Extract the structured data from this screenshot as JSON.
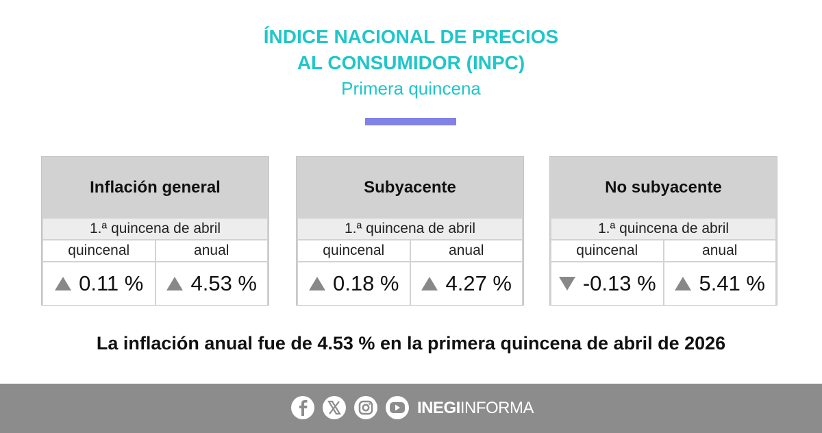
{
  "header": {
    "title_line1": "ÍNDICE NACIONAL DE PRECIOS",
    "title_line2": "AL CONSUMIDOR (INPC)",
    "subtitle": "Primera quincena"
  },
  "cards": [
    {
      "title": "Inflación general",
      "period": "1.ª quincena de abril",
      "col_labels": [
        "quincenal",
        "anual"
      ],
      "values": [
        "0.11 %",
        "4.53 %"
      ]
    },
    {
      "title": "Subyacente",
      "period": "1.ª quincena de abril",
      "col_labels": [
        "quincenal",
        "anual"
      ],
      "values": [
        "0.18 %",
        "4.27 %"
      ]
    },
    {
      "title": "No subyacente",
      "period": "1.ª quincena de abril",
      "col_labels": [
        "quincenal",
        "anual"
      ],
      "values": [
        "-0.13 %",
        "5.41 %"
      ]
    }
  ],
  "summary": "La inflación anual fue de 4.53 % en la primera quincena de abril de 2026",
  "footer": {
    "brand_bold": "INEGI",
    "brand_light": "INFORMA"
  }
}
